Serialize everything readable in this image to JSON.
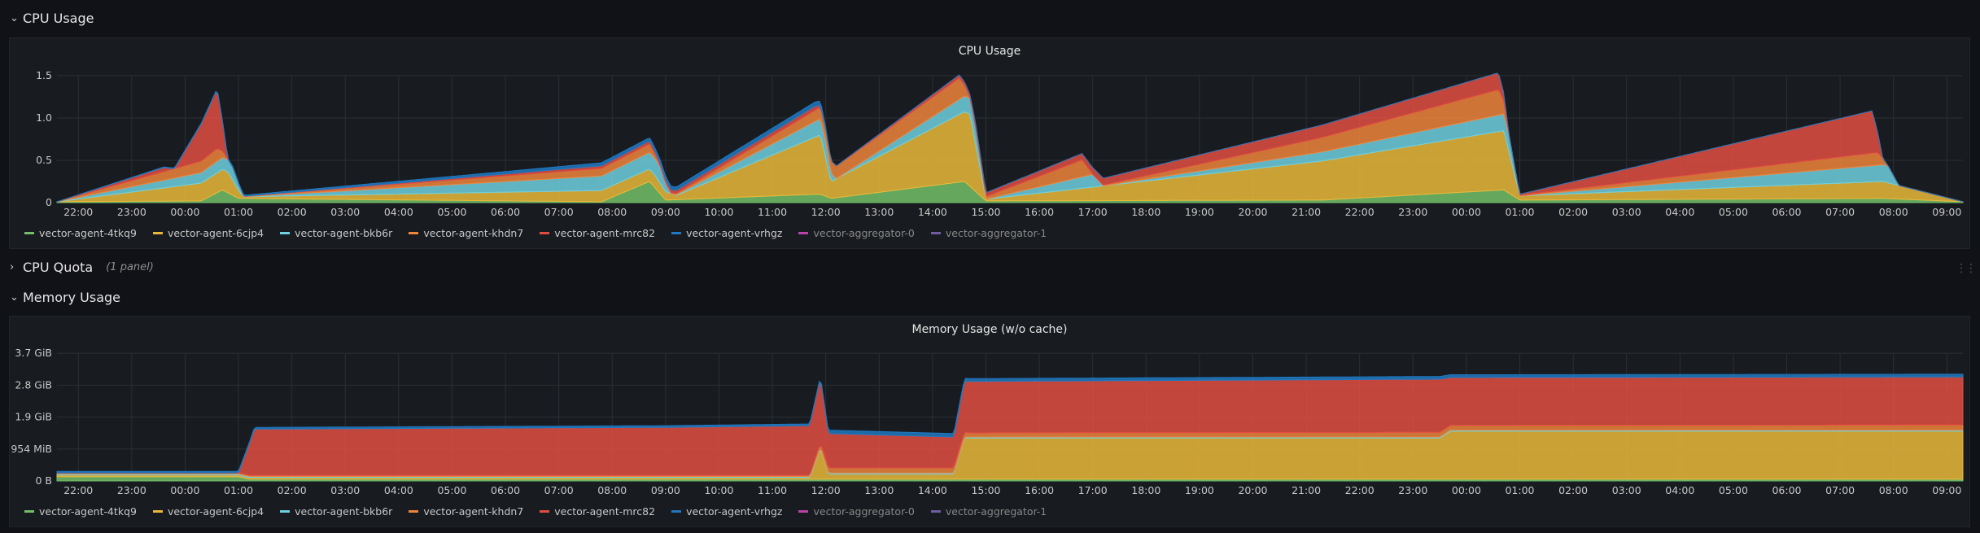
{
  "rows": [
    {
      "title": "CPU Usage",
      "collapsed": false
    },
    {
      "title": "CPU Quota",
      "collapsed": true,
      "meta": "(1 panel)"
    },
    {
      "title": "Memory Usage",
      "collapsed": false
    }
  ],
  "series_colors": {
    "vector-agent-4tkq9": "#73bf69",
    "vector-agent-6cjp4": "#fade2a",
    "vector-agent-bkb6r": "#5794f2",
    "vector-agent-khdn7": "#ff9830",
    "vector-agent-mrc82": "#f2495c",
    "vector-agent-vrhgz": "#5794f2",
    "vector-aggregator-0": "#b877d9",
    "vector-aggregator-1": "#8ab8ff"
  },
  "legend": [
    {
      "name": "vector-agent-4tkq9",
      "color": "#73bf69",
      "dim": false
    },
    {
      "name": "vector-agent-6cjp4",
      "color": "#eab839",
      "dim": false
    },
    {
      "name": "vector-agent-bkb6r",
      "color": "#6ed0e0",
      "dim": false
    },
    {
      "name": "vector-agent-khdn7",
      "color": "#ef843c",
      "dim": false
    },
    {
      "name": "vector-agent-mrc82",
      "color": "#e24d42",
      "dim": false
    },
    {
      "name": "vector-agent-vrhgz",
      "color": "#1f78c1",
      "dim": false
    },
    {
      "name": "vector-aggregator-0",
      "color": "#ba43a9",
      "dim": true
    },
    {
      "name": "vector-aggregator-1",
      "color": "#705da0",
      "dim": true
    }
  ],
  "chart_data": [
    {
      "type": "area",
      "title": "CPU Usage",
      "ylim": [
        0,
        1.5
      ],
      "ytick_labels": [
        "0",
        "0.5",
        "1.0",
        "1.5"
      ],
      "yticks": [
        0,
        0.5,
        1.0,
        1.5
      ],
      "xlim_hours": [
        21.6,
        57.3
      ],
      "xtick_labels": [
        "22:00",
        "23:00",
        "00:00",
        "01:00",
        "02:00",
        "03:00",
        "04:00",
        "05:00",
        "06:00",
        "07:00",
        "08:00",
        "09:00",
        "10:00",
        "11:00",
        "12:00",
        "13:00",
        "14:00",
        "15:00",
        "16:00",
        "17:00",
        "18:00",
        "19:00",
        "20:00",
        "21:00",
        "22:00",
        "23:00",
        "00:00",
        "01:00",
        "02:00",
        "03:00",
        "04:00",
        "05:00",
        "06:00",
        "07:00",
        "08:00",
        "09:00"
      ],
      "grid": true,
      "legend_position": "bottom",
      "stacked": true,
      "series": [
        {
          "name": "vector-agent-4tkq9",
          "color": "#73bf69",
          "points": [
            [
              21.6,
              0.01
            ],
            [
              24.3,
              0.02
            ],
            [
              24.7,
              0.15
            ],
            [
              25.0,
              0.05
            ],
            [
              31.8,
              0.01
            ],
            [
              32.7,
              0.25
            ],
            [
              33.0,
              0.03
            ],
            [
              35.9,
              0.1
            ],
            [
              36.1,
              0.05
            ],
            [
              38.6,
              0.25
            ],
            [
              39.0,
              0.02
            ],
            [
              45.3,
              0.03
            ],
            [
              48.7,
              0.15
            ],
            [
              49.0,
              0.03
            ],
            [
              55.8,
              0.05
            ],
            [
              57.3,
              0.01
            ]
          ]
        },
        {
          "name": "vector-agent-6cjp4",
          "color": "#eab839",
          "points": [
            [
              21.6,
              0.0
            ],
            [
              24.8,
              0.25
            ],
            [
              25.1,
              0.02
            ],
            [
              32.8,
              0.15
            ],
            [
              33.2,
              0.05
            ],
            [
              35.9,
              0.7
            ],
            [
              36.1,
              0.2
            ],
            [
              38.7,
              0.85
            ],
            [
              39.0,
              0.02
            ],
            [
              48.7,
              0.7
            ],
            [
              49.0,
              0.05
            ],
            [
              55.8,
              0.2
            ],
            [
              57.3,
              0.0
            ]
          ]
        },
        {
          "name": "vector-agent-bkb6r",
          "color": "#6ed0e0",
          "points": [
            [
              21.6,
              0.0
            ],
            [
              24.9,
              0.15
            ],
            [
              25.1,
              0.0
            ],
            [
              32.9,
              0.2
            ],
            [
              33.1,
              0.0
            ],
            [
              36.0,
              0.2
            ],
            [
              36.2,
              0.0
            ],
            [
              38.8,
              0.2
            ],
            [
              39.0,
              0.0
            ],
            [
              41.0,
              0.15
            ],
            [
              41.2,
              0.0
            ],
            [
              48.8,
              0.2
            ],
            [
              49.0,
              0.0
            ],
            [
              55.9,
              0.2
            ],
            [
              56.1,
              0.0
            ],
            [
              57.3,
              0.0
            ]
          ]
        },
        {
          "name": "vector-agent-khdn7",
          "color": "#ef843c",
          "points": [
            [
              21.6,
              0.0
            ],
            [
              24.6,
              0.15
            ],
            [
              24.8,
              0.0
            ],
            [
              32.7,
              0.1
            ],
            [
              32.9,
              0.0
            ],
            [
              38.5,
              0.25
            ],
            [
              38.7,
              0.0
            ],
            [
              40.8,
              0.2
            ],
            [
              41.0,
              0.0
            ],
            [
              48.6,
              0.3
            ],
            [
              48.8,
              0.0
            ],
            [
              55.7,
              0.15
            ],
            [
              55.9,
              0.0
            ],
            [
              57.3,
              0.0
            ]
          ]
        },
        {
          "name": "vector-agent-mrc82",
          "color": "#e24d42",
          "points": [
            [
              21.6,
              0.0
            ],
            [
              23.6,
              0.05
            ],
            [
              23.8,
              0.0
            ],
            [
              24.6,
              0.7
            ],
            [
              24.8,
              0.0
            ],
            [
              35.8,
              0.05
            ],
            [
              36.0,
              0.0
            ],
            [
              48.6,
              0.2
            ],
            [
              48.8,
              0.0
            ],
            [
              55.6,
              0.5
            ],
            [
              55.8,
              0.0
            ],
            [
              57.3,
              0.0
            ]
          ]
        },
        {
          "name": "vector-agent-vrhgz",
          "color": "#1f78c1",
          "points": [
            [
              21.6,
              0.0
            ],
            [
              35.9,
              0.05
            ],
            [
              36.1,
              0.0
            ],
            [
              57.3,
              0.0
            ]
          ]
        }
      ]
    },
    {
      "type": "area",
      "title": "Memory Usage (w/o cache)",
      "ylim": [
        0,
        3.7
      ],
      "ytick_labels": [
        "0 B",
        "954 MiB",
        "1.9 GiB",
        "2.8 GiB",
        "3.7 GiB"
      ],
      "yticks": [
        0,
        0.93,
        1.86,
        2.79,
        3.72
      ],
      "xlim_hours": [
        21.6,
        57.3
      ],
      "xtick_labels": [
        "22:00",
        "23:00",
        "00:00",
        "01:00",
        "02:00",
        "03:00",
        "04:00",
        "05:00",
        "06:00",
        "07:00",
        "08:00",
        "09:00",
        "10:00",
        "11:00",
        "12:00",
        "13:00",
        "14:00",
        "15:00",
        "16:00",
        "17:00",
        "18:00",
        "19:00",
        "20:00",
        "21:00",
        "22:00",
        "23:00",
        "00:00",
        "01:00",
        "02:00",
        "03:00",
        "04:00",
        "05:00",
        "06:00",
        "07:00",
        "08:00",
        "09:00"
      ],
      "grid": true,
      "legend_position": "bottom",
      "stacked": true,
      "series": [
        {
          "name": "vector-agent-4tkq9",
          "color": "#73bf69",
          "points": [
            [
              21.6,
              0.12
            ],
            [
              25.0,
              0.12
            ],
            [
              25.2,
              0.05
            ],
            [
              57.3,
              0.05
            ]
          ]
        },
        {
          "name": "vector-agent-6cjp4",
          "color": "#eab839",
          "points": [
            [
              21.6,
              0.05
            ],
            [
              35.7,
              0.05
            ],
            [
              35.9,
              0.9
            ],
            [
              36.05,
              0.15
            ],
            [
              37.0,
              0.15
            ],
            [
              38.4,
              0.15
            ],
            [
              38.6,
              1.2
            ],
            [
              47.5,
              1.2
            ],
            [
              47.7,
              1.4
            ],
            [
              57.3,
              1.4
            ]
          ]
        },
        {
          "name": "vector-agent-bkb6r",
          "color": "#6ed0e0",
          "points": [
            [
              21.6,
              0.03
            ],
            [
              57.3,
              0.03
            ]
          ]
        },
        {
          "name": "vector-agent-khdn7",
          "color": "#ef843c",
          "points": [
            [
              21.6,
              0.03
            ],
            [
              35.7,
              0.03
            ],
            [
              36.0,
              0.15
            ],
            [
              38.5,
              0.15
            ],
            [
              38.7,
              0.12
            ],
            [
              57.3,
              0.15
            ]
          ]
        },
        {
          "name": "vector-agent-mrc82",
          "color": "#e24d42",
          "points": [
            [
              21.6,
              0.0
            ],
            [
              25.0,
              0.0
            ],
            [
              25.3,
              1.35
            ],
            [
              33.0,
              1.4
            ],
            [
              35.7,
              1.45
            ],
            [
              35.9,
              1.9
            ],
            [
              36.05,
              1.0
            ],
            [
              38.4,
              0.9
            ],
            [
              38.6,
              1.5
            ],
            [
              47.5,
              1.55
            ],
            [
              47.7,
              1.4
            ],
            [
              57.3,
              1.4
            ]
          ]
        },
        {
          "name": "vector-agent-vrhgz",
          "color": "#1f78c1",
          "points": [
            [
              21.6,
              0.05
            ],
            [
              36.0,
              0.05
            ],
            [
              36.1,
              0.1
            ],
            [
              38.4,
              0.1
            ],
            [
              38.6,
              0.08
            ],
            [
              57.3,
              0.08
            ]
          ]
        }
      ]
    }
  ]
}
